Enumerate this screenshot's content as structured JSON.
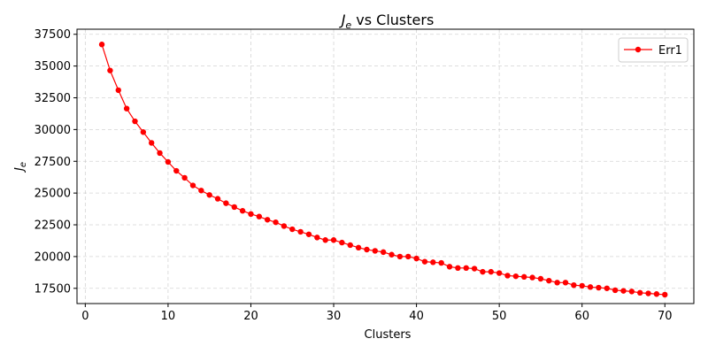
{
  "chart_data": {
    "type": "line",
    "title_main": "J",
    "title_sub": "e",
    "title_rest": " vs Clusters",
    "xlabel": "Clusters",
    "ylabel_main": "J",
    "ylabel_sub": "e",
    "xlim": [
      -1,
      73.5
    ],
    "ylim": [
      16300,
      37900
    ],
    "xticks": [
      0,
      10,
      20,
      30,
      40,
      50,
      60,
      70
    ],
    "yticks": [
      17500,
      20000,
      22500,
      25000,
      27500,
      30000,
      32500,
      35000,
      37500
    ],
    "ytick_labels": [
      "17500",
      "20000",
      "22500",
      "25000",
      "27500",
      "30000",
      "32500",
      "35000",
      "37500"
    ],
    "grid": true,
    "legend_position": "top-right",
    "series": [
      {
        "name": "Err1",
        "color": "#ff0000",
        "x": [
          2,
          3,
          4,
          5,
          6,
          7,
          8,
          9,
          10,
          11,
          12,
          13,
          14,
          15,
          16,
          17,
          18,
          19,
          20,
          21,
          22,
          23,
          24,
          25,
          26,
          27,
          28,
          29,
          30,
          31,
          32,
          33,
          34,
          35,
          36,
          37,
          38,
          39,
          40,
          41,
          42,
          43,
          44,
          45,
          46,
          47,
          48,
          49,
          50,
          51,
          52,
          53,
          54,
          55,
          56,
          57,
          58,
          59,
          60,
          61,
          62,
          63,
          64,
          65,
          66,
          67,
          68,
          69,
          70
        ],
        "y": [
          36700,
          34650,
          33100,
          31650,
          30650,
          29800,
          28950,
          28150,
          27450,
          26750,
          26200,
          25600,
          25200,
          24850,
          24550,
          24200,
          23900,
          23600,
          23350,
          23150,
          22900,
          22700,
          22400,
          22150,
          21950,
          21750,
          21500,
          21300,
          21300,
          21100,
          20900,
          20700,
          20550,
          20450,
          20350,
          20150,
          20000,
          20000,
          19850,
          19600,
          19550,
          19500,
          19200,
          19100,
          19100,
          19050,
          18800,
          18800,
          18700,
          18500,
          18450,
          18400,
          18350,
          18250,
          18100,
          17950,
          17950,
          17750,
          17700,
          17600,
          17550,
          17500,
          17350,
          17300,
          17250,
          17150,
          17100,
          17050,
          17000
        ]
      }
    ]
  }
}
